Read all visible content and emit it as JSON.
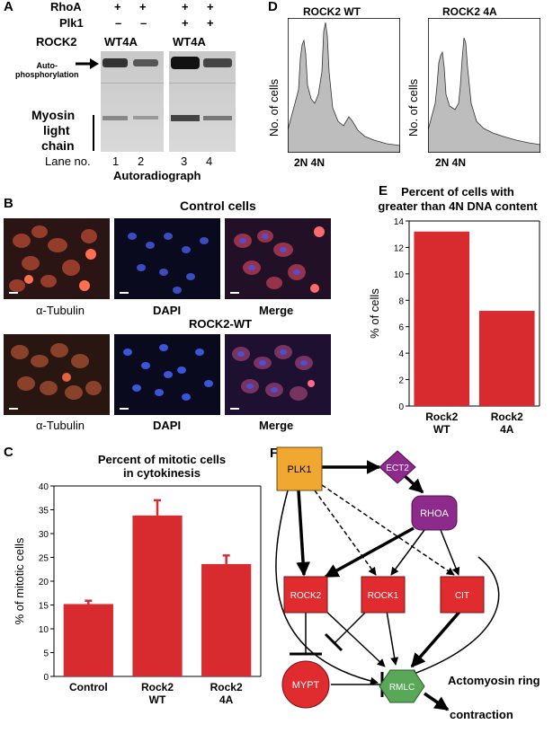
{
  "panelA": {
    "letter": "A",
    "row_labels": [
      "RhoA",
      "Plk1",
      "ROCK2"
    ],
    "rhoa": [
      "+",
      "+",
      "+",
      "+"
    ],
    "plk1": [
      "–",
      "–",
      "+",
      "+"
    ],
    "rock2": [
      "WT4A",
      "WT4A"
    ],
    "autophos_label": "Auto-\nphosphorylation",
    "mlc_label": [
      "Myosin",
      "light",
      "chain"
    ],
    "lane_label": "Lane no.",
    "lanes": [
      "1",
      "2",
      "3",
      "4"
    ],
    "caption": "Autoradiograph"
  },
  "panelB": {
    "letter": "B",
    "title1": "Control cells",
    "title2": "ROCK2-WT",
    "labels": [
      "α-Tubulin",
      "DAPI",
      "Merge"
    ]
  },
  "panelC": {
    "letter": "C",
    "title": "Percent of mitotic cells\nin cytokinesis"
  },
  "panelD": {
    "letter": "D",
    "titles": [
      "ROCK2 WT",
      "ROCK2 4A"
    ],
    "ylabel": "No. of cells",
    "xlabel": "2N 4N"
  },
  "panelE": {
    "letter": "E",
    "title": "Percent of cells with\ngreater than 4N DNA content"
  },
  "panelF": {
    "letter": "F",
    "nodes": {
      "plk1": "PLK1",
      "ect2": "ECT2",
      "rhoa": "RHOA",
      "rock2": "ROCK2",
      "rock1": "ROCK1",
      "cit": "CIT",
      "mypt": "MYPT",
      "rmlc": "RMLC"
    },
    "outcome": [
      "Actomyosin ring",
      "contraction"
    ],
    "colors": {
      "plk1": "#f0a830",
      "purple": "#8e2a8c",
      "red": "#e02b2f",
      "green": "#58a857"
    }
  },
  "chart_data": [
    {
      "type": "bar",
      "title": "Percent of mitotic cells\nin cytokinesis",
      "categories": [
        "Control",
        "Rock2\nWT",
        "Rock2\n4A"
      ],
      "values": [
        15.2,
        33.8,
        23.6
      ],
      "errors": [
        0.7,
        3.2,
        1.8
      ],
      "ylabel": "% of mitotic cells",
      "ylim": [
        0,
        40
      ],
      "yticks": [
        0,
        5,
        10,
        15,
        20,
        25,
        30,
        35,
        40
      ],
      "color": "#d82b2f"
    },
    {
      "type": "bar",
      "title": "Percent of cells with\ngreater than 4N DNA content",
      "categories": [
        "Rock2\nWT",
        "Rock2\n4A"
      ],
      "values": [
        13.2,
        7.2
      ],
      "ylabel": "% of cells",
      "ylim": [
        0,
        14
      ],
      "yticks": [
        0,
        2,
        4,
        6,
        8,
        10,
        12,
        14
      ],
      "color": "#d82b2f"
    }
  ]
}
